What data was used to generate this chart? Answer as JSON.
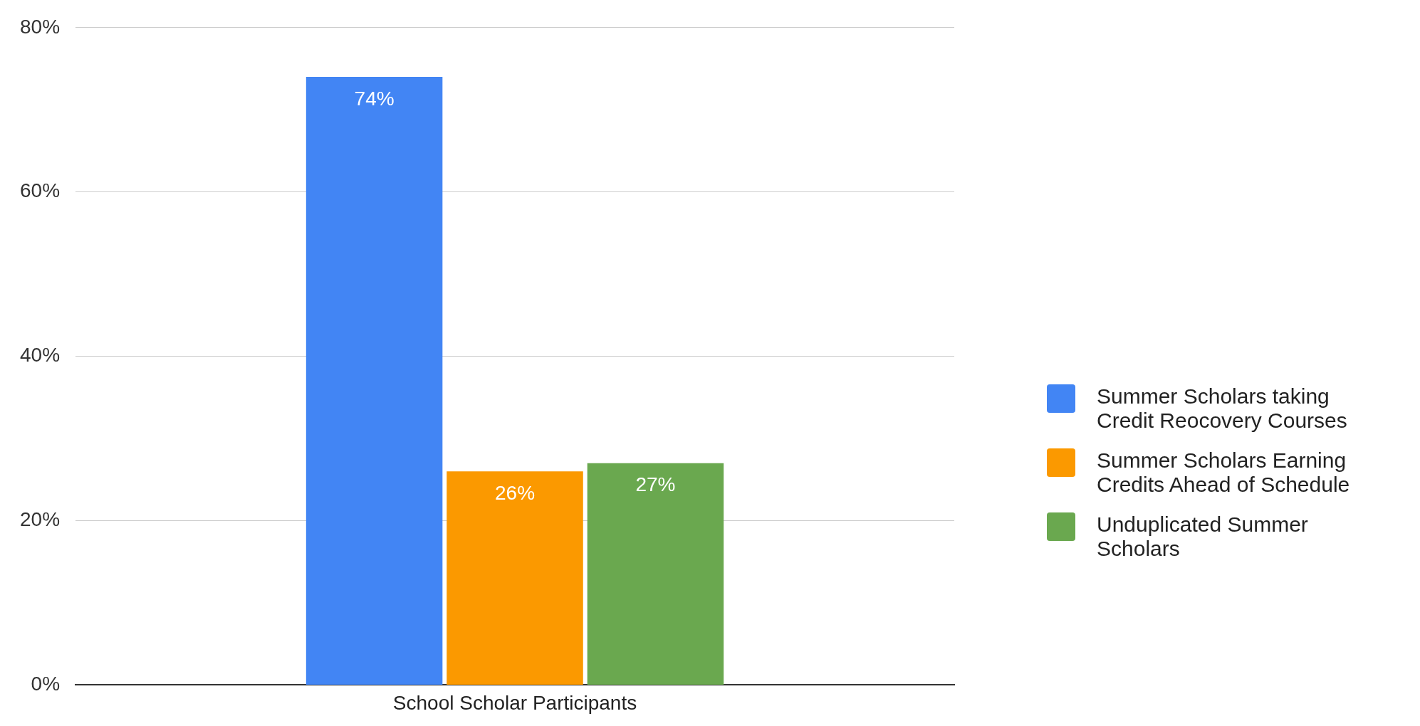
{
  "chart_data": {
    "type": "bar",
    "categories": [
      "School Scholar Participants"
    ],
    "series": [
      {
        "name": "Summer Scholars taking Credit Reocovery Courses",
        "color": "#4285f4",
        "values": [
          74
        ],
        "value_labels": [
          "74%"
        ]
      },
      {
        "name": "Summer Scholars Earning Credits Ahead of Schedule",
        "color": "#fb9900",
        "values": [
          26
        ],
        "value_labels": [
          "26%"
        ]
      },
      {
        "name": "Unduplicated Summer Scholars",
        "color": "#6aa84f",
        "values": [
          27
        ],
        "value_labels": [
          "27%"
        ]
      }
    ],
    "ylim": [
      0,
      80
    ],
    "yticks": [
      {
        "value": 0,
        "label": "0%"
      },
      {
        "value": 20,
        "label": "20%"
      },
      {
        "value": 40,
        "label": "40%"
      },
      {
        "value": 60,
        "label": "60%"
      },
      {
        "value": 80,
        "label": "80%"
      }
    ],
    "grid": "y",
    "legend": "right"
  }
}
